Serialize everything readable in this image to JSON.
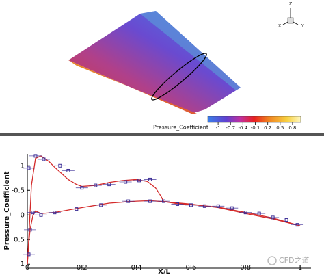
{
  "render3d": {
    "axis_labels": [
      "Z",
      "Y",
      "X"
    ],
    "colorbar": {
      "title": "Pressure_Coefficient",
      "lim": [
        -1.25,
        1.0
      ],
      "ticks": [
        -1,
        -0.7,
        -0.4,
        -0.1,
        0.2,
        0.5,
        0.8
      ]
    }
  },
  "chart_data": {
    "type": "line",
    "xlabel": "X/L",
    "ylabel": "Pressure_Coefficient",
    "xlim": [
      0,
      1.04
    ],
    "ylim": [
      -1.24,
      1.08
    ],
    "y_inverted": true,
    "xticks": [
      0,
      0.2,
      0.4,
      0.6,
      0.8,
      1
    ],
    "yticks": [
      -1,
      -0.5,
      0,
      0.5,
      1
    ],
    "series": [
      {
        "type": "line",
        "color": "#d42a2a",
        "x": [
          0,
          0.005,
          0.015,
          0.03,
          0.05,
          0.08,
          0.1,
          0.13,
          0.15,
          0.18,
          0.2,
          0.25,
          0.3,
          0.35,
          0.4,
          0.44,
          0.47,
          0.49,
          0.5,
          0.55,
          0.6,
          0.7,
          0.8,
          0.9,
          1.0
        ],
        "values": [
          1.0,
          0.5,
          -0.6,
          -1.15,
          -1.2,
          -1.08,
          -0.97,
          -0.82,
          -0.72,
          -0.62,
          -0.58,
          -0.6,
          -0.66,
          -0.7,
          -0.72,
          -0.68,
          -0.55,
          -0.38,
          -0.27,
          -0.23,
          -0.21,
          -0.16,
          -0.05,
          0.06,
          0.22
        ]
      },
      {
        "type": "line",
        "color": "#d42a2a",
        "x": [
          0,
          0.005,
          0.01,
          0.02,
          0.03,
          0.05,
          0.1,
          0.2,
          0.3,
          0.4,
          0.45,
          0.5,
          0.6,
          0.7,
          0.8,
          0.9,
          1.0
        ],
        "values": [
          1.0,
          0.6,
          0.3,
          0.02,
          -0.08,
          -0.03,
          -0.05,
          -0.15,
          -0.24,
          -0.28,
          -0.29,
          -0.27,
          -0.22,
          -0.15,
          -0.03,
          0.08,
          0.22
        ]
      },
      {
        "type": "scatter",
        "color": "#3b2d96",
        "x": [
          0.005,
          0.01,
          0.03,
          0.06,
          0.12,
          0.15,
          0.2,
          0.25,
          0.3,
          0.36,
          0.41,
          0.45,
          0.5,
          0.55,
          0.6,
          0.65,
          0.7,
          0.75,
          0.8,
          0.85,
          0.9,
          0.95,
          0.99,
          0.005,
          0.02,
          0.05,
          0.1,
          0.18,
          0.27,
          0.37,
          0.45
        ],
        "values": [
          -0.95,
          0.3,
          -1.2,
          -1.13,
          -1.0,
          -0.9,
          -0.55,
          -0.6,
          -0.62,
          -0.67,
          -0.7,
          -0.72,
          -0.28,
          -0.22,
          -0.2,
          -0.18,
          -0.18,
          -0.14,
          -0.05,
          -0.03,
          0.05,
          0.1,
          0.2,
          0.8,
          -0.05,
          0.0,
          -0.05,
          -0.12,
          -0.2,
          -0.28,
          -0.28
        ]
      }
    ]
  },
  "watermark": "CFD之道"
}
